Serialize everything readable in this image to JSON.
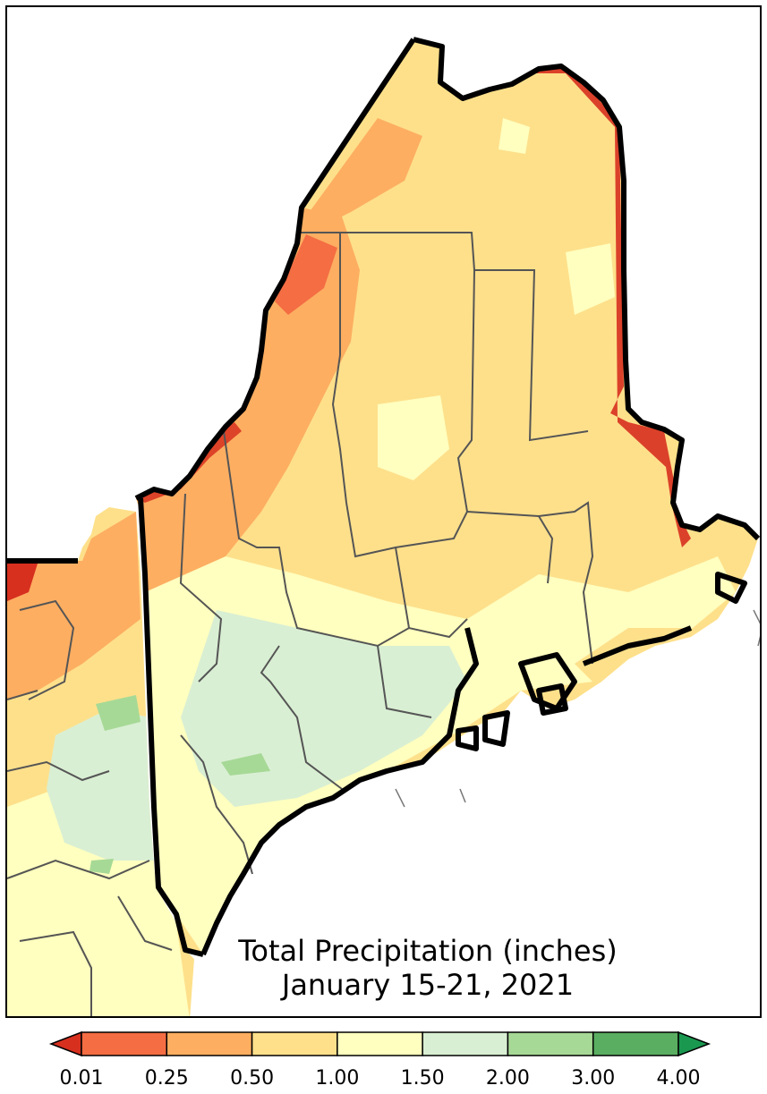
{
  "map": {
    "title": "Total Precipitation (inches)",
    "subtitle": "January 15-21, 2021"
  },
  "legend": {
    "ticks": [
      "0.01",
      "0.25",
      "0.50",
      "1.00",
      "1.50",
      "2.00",
      "3.00",
      "4.00"
    ],
    "bins": [
      {
        "color": "#d7301f"
      },
      {
        "color": "#f46d43"
      },
      {
        "color": "#fdae61"
      },
      {
        "color": "#fee08b"
      },
      {
        "color": "#ffffbf"
      },
      {
        "color": "#d9efd3"
      },
      {
        "color": "#a6d996"
      },
      {
        "color": "#5aae61"
      },
      {
        "color": "#1a9850"
      }
    ],
    "extend": "both"
  }
}
